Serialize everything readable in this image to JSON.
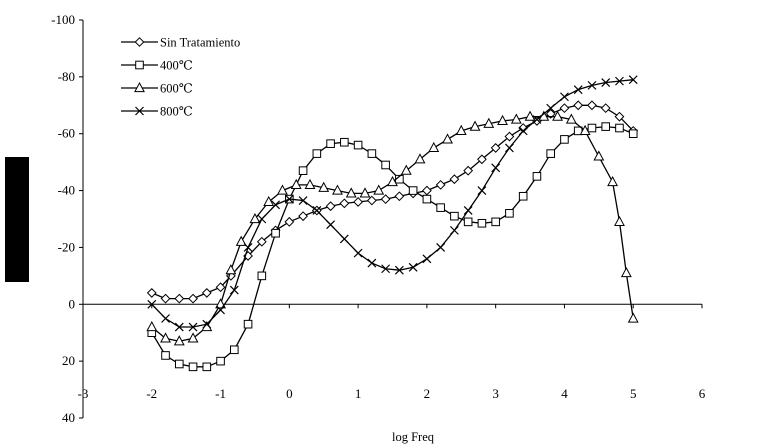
{
  "chart_data": {
    "type": "line",
    "title": "",
    "xlabel": "log Freq",
    "ylabel": "",
    "xlim": [
      -3,
      6
    ],
    "ylim": [
      40,
      -100
    ],
    "x_ticks": [
      "-3",
      "-2",
      "-1",
      "0",
      "1",
      "2",
      "3",
      "4",
      "5",
      "6"
    ],
    "y_ticks": [
      "-100",
      "-80",
      "-60",
      "-40",
      "-20",
      "0",
      "20",
      "40"
    ],
    "legend_position": "top-left",
    "series": [
      {
        "name": "Sin Tratamiento",
        "marker": "diamond",
        "points": [
          [
            -2.0,
            -4
          ],
          [
            -1.8,
            -2
          ],
          [
            -1.6,
            -2
          ],
          [
            -1.4,
            -2
          ],
          [
            -1.2,
            -4
          ],
          [
            -1.0,
            -6
          ],
          [
            -0.85,
            -10
          ],
          [
            -0.6,
            -17
          ],
          [
            -0.4,
            -22
          ],
          [
            -0.2,
            -26
          ],
          [
            0.0,
            -29
          ],
          [
            0.2,
            -31
          ],
          [
            0.4,
            -33
          ],
          [
            0.6,
            -34.5
          ],
          [
            0.8,
            -35.5
          ],
          [
            1.0,
            -36
          ],
          [
            1.2,
            -36.5
          ],
          [
            1.4,
            -37
          ],
          [
            1.6,
            -38
          ],
          [
            1.8,
            -39
          ],
          [
            2.0,
            -40
          ],
          [
            2.2,
            -42
          ],
          [
            2.4,
            -44
          ],
          [
            2.6,
            -47
          ],
          [
            2.8,
            -51
          ],
          [
            3.0,
            -55
          ],
          [
            3.2,
            -59
          ],
          [
            3.4,
            -62
          ],
          [
            3.6,
            -64.5
          ],
          [
            3.8,
            -67
          ],
          [
            4.0,
            -69
          ],
          [
            4.2,
            -70
          ],
          [
            4.4,
            -70
          ],
          [
            4.6,
            -69
          ],
          [
            4.8,
            -66
          ],
          [
            5.0,
            -61
          ]
        ]
      },
      {
        "name": "400℃",
        "marker": "square",
        "points": [
          [
            -2.0,
            10
          ],
          [
            -1.8,
            18
          ],
          [
            -1.6,
            21
          ],
          [
            -1.4,
            22
          ],
          [
            -1.2,
            22
          ],
          [
            -1.0,
            20
          ],
          [
            -0.8,
            16
          ],
          [
            -0.6,
            7
          ],
          [
            -0.4,
            -10
          ],
          [
            -0.2,
            -25
          ],
          [
            0.0,
            -37
          ],
          [
            0.2,
            -47
          ],
          [
            0.4,
            -53
          ],
          [
            0.6,
            -56.5
          ],
          [
            0.8,
            -57
          ],
          [
            1.0,
            -56
          ],
          [
            1.2,
            -53
          ],
          [
            1.4,
            -49
          ],
          [
            1.6,
            -44
          ],
          [
            1.8,
            -40
          ],
          [
            2.0,
            -37
          ],
          [
            2.2,
            -34
          ],
          [
            2.4,
            -31
          ],
          [
            2.6,
            -29
          ],
          [
            2.8,
            -28.5
          ],
          [
            3.0,
            -29
          ],
          [
            3.2,
            -32
          ],
          [
            3.4,
            -38
          ],
          [
            3.6,
            -45
          ],
          [
            3.8,
            -53
          ],
          [
            4.0,
            -58
          ],
          [
            4.2,
            -61
          ],
          [
            4.4,
            -62
          ],
          [
            4.6,
            -62.5
          ],
          [
            4.8,
            -62
          ],
          [
            5.0,
            -60
          ]
        ]
      },
      {
        "name": "600℃",
        "marker": "triangle",
        "points": [
          [
            -2.0,
            8
          ],
          [
            -1.8,
            12
          ],
          [
            -1.6,
            13
          ],
          [
            -1.4,
            12
          ],
          [
            -1.2,
            8
          ],
          [
            -1.0,
            0
          ],
          [
            -0.85,
            -12
          ],
          [
            -0.7,
            -22
          ],
          [
            -0.5,
            -30
          ],
          [
            -0.3,
            -36
          ],
          [
            -0.1,
            -40
          ],
          [
            0.1,
            -42
          ],
          [
            0.3,
            -42
          ],
          [
            0.5,
            -41
          ],
          [
            0.7,
            -40
          ],
          [
            0.9,
            -39
          ],
          [
            1.1,
            -39
          ],
          [
            1.3,
            -40
          ],
          [
            1.5,
            -43
          ],
          [
            1.7,
            -47
          ],
          [
            1.9,
            -51
          ],
          [
            2.1,
            -55
          ],
          [
            2.3,
            -58
          ],
          [
            2.5,
            -61
          ],
          [
            2.7,
            -62.5
          ],
          [
            2.9,
            -63.5
          ],
          [
            3.1,
            -64.5
          ],
          [
            3.3,
            -65
          ],
          [
            3.5,
            -66
          ],
          [
            3.7,
            -66
          ],
          [
            3.9,
            -66
          ],
          [
            4.1,
            -65
          ],
          [
            4.3,
            -61
          ],
          [
            4.5,
            -52
          ],
          [
            4.7,
            -43
          ],
          [
            4.8,
            -29
          ],
          [
            4.9,
            -11
          ],
          [
            5.0,
            5
          ]
        ]
      },
      {
        "name": "800℃",
        "marker": "x",
        "points": [
          [
            -2.0,
            0
          ],
          [
            -1.8,
            5
          ],
          [
            -1.6,
            8
          ],
          [
            -1.4,
            8
          ],
          [
            -1.2,
            7
          ],
          [
            -1.0,
            2
          ],
          [
            -0.8,
            -5
          ],
          [
            -0.6,
            -20
          ],
          [
            -0.4,
            -30
          ],
          [
            -0.2,
            -35
          ],
          [
            0.0,
            -37
          ],
          [
            0.2,
            -36.5
          ],
          [
            0.4,
            -33
          ],
          [
            0.6,
            -28
          ],
          [
            0.8,
            -23
          ],
          [
            1.0,
            -18
          ],
          [
            1.2,
            -14.5
          ],
          [
            1.4,
            -12.5
          ],
          [
            1.6,
            -12
          ],
          [
            1.8,
            -13
          ],
          [
            2.0,
            -16
          ],
          [
            2.2,
            -20
          ],
          [
            2.4,
            -26
          ],
          [
            2.6,
            -33
          ],
          [
            2.8,
            -40
          ],
          [
            3.0,
            -48
          ],
          [
            3.2,
            -55
          ],
          [
            3.4,
            -61
          ],
          [
            3.6,
            -65
          ],
          [
            3.8,
            -69
          ],
          [
            4.0,
            -73
          ],
          [
            4.2,
            -75.5
          ],
          [
            4.4,
            -77
          ],
          [
            4.6,
            -78
          ],
          [
            4.8,
            -78.5
          ],
          [
            5.0,
            -79
          ]
        ]
      }
    ]
  }
}
